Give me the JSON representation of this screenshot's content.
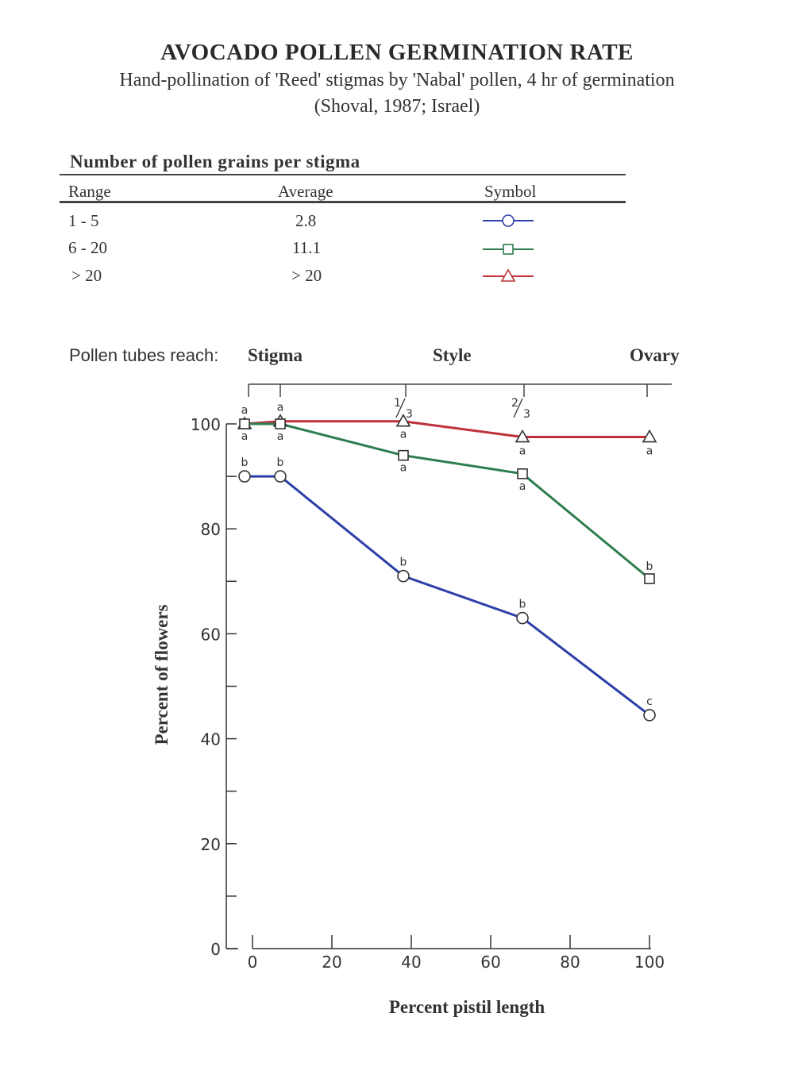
{
  "header": {
    "title": "AVOCADO POLLEN GERMINATION RATE",
    "subtitle": "Hand-pollination of 'Reed' stigmas by 'Nabal' pollen, 4 hr of germination",
    "source": "(Shoval, 1987;  Israel)"
  },
  "legend_table": {
    "caption": "Number of pollen grains per stigma",
    "headers": {
      "range": "Range",
      "average": "Average",
      "symbol": "Symbol"
    },
    "rows": [
      {
        "range": "1 - 5",
        "average": "2.8",
        "symbol": "circle",
        "color": "#2d3fa8"
      },
      {
        "range": "6 - 20",
        "average": "11.1",
        "symbol": "square",
        "color": "#2e7d4f"
      },
      {
        "range": "> 20",
        "average": "> 20",
        "symbol": "triangle",
        "color": "#c0303a"
      }
    ]
  },
  "stages": {
    "label": "Pollen tubes reach:",
    "stigma": "Stigma",
    "style": "Style",
    "ovary": "Ovary",
    "fractions": [
      {
        "num": "1",
        "den": "3"
      },
      {
        "num": "2",
        "den": "3"
      }
    ]
  },
  "chart_data": {
    "type": "line",
    "xlabel": "Percent pistil length",
    "ylabel": "Percent of flowers",
    "xlim": [
      0,
      100
    ],
    "ylim": [
      0,
      100
    ],
    "xticks": [
      0,
      20,
      40,
      60,
      80,
      100
    ],
    "yticks": [
      0,
      20,
      40,
      60,
      80,
      100
    ],
    "grid": false,
    "series": [
      {
        "marker": "triangle",
        "color": "#c0303a",
        "x": [
          -2,
          7,
          38,
          68,
          100
        ],
        "y": [
          100,
          100.5,
          100.5,
          97.5,
          97.5
        ],
        "labels": [
          "a",
          "a",
          "a",
          "a",
          "a"
        ]
      },
      {
        "marker": "square",
        "color": "#2e7d4f",
        "x": [
          -2,
          7,
          38,
          68,
          100
        ],
        "y": [
          100,
          100,
          94,
          90.5,
          70.5
        ],
        "labels": [
          "a",
          "a",
          "a",
          "a",
          "b"
        ]
      },
      {
        "marker": "circle",
        "color": "#2d3fa8",
        "x": [
          -2,
          7,
          38,
          68,
          100
        ],
        "y": [
          90,
          90,
          71,
          63,
          44.5
        ],
        "labels": [
          "b",
          "b",
          "b",
          "b",
          "c"
        ]
      }
    ]
  }
}
